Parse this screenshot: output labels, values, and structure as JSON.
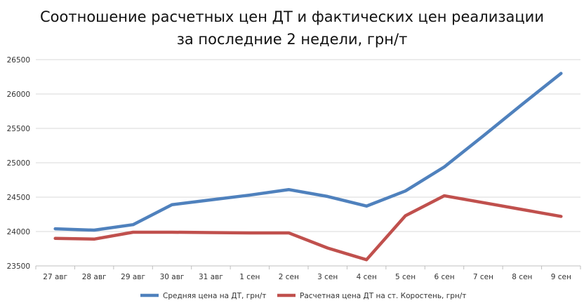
{
  "chart_data": {
    "type": "line",
    "title_line1": "Соотношение расчетных цен ДТ и фактических цен реализации",
    "title_line2": "за последние 2 недели, грн/т",
    "categories": [
      "27 авг",
      "28 авг",
      "29 авг",
      "30 авг",
      "31 авг",
      "1 сен",
      "2 сен",
      "3 сен",
      "4 сен",
      "5 сен",
      "6 сен",
      "7 сен",
      "8 сен",
      "9 сен"
    ],
    "ylim": [
      23500,
      26500
    ],
    "yticks": [
      23500,
      24000,
      24500,
      25000,
      25500,
      26000,
      26500
    ],
    "grid": true,
    "legend_position": "bottom",
    "series": [
      {
        "name": "Средняя цена на ДТ, грн/т",
        "color": "#4f81bd",
        "values": [
          24040,
          24020,
          24100,
          24390,
          24460,
          24530,
          24610,
          24510,
          24370,
          24590,
          24940,
          25390,
          25850,
          26300
        ]
      },
      {
        "name": "Расчетная цена ДТ на ст. Коростень, грн/т",
        "color": "#c0504d",
        "values": [
          23900,
          23890,
          23990,
          23990,
          23985,
          23980,
          23980,
          23760,
          23590,
          24230,
          24520,
          24420,
          24320,
          24220
        ]
      }
    ]
  }
}
